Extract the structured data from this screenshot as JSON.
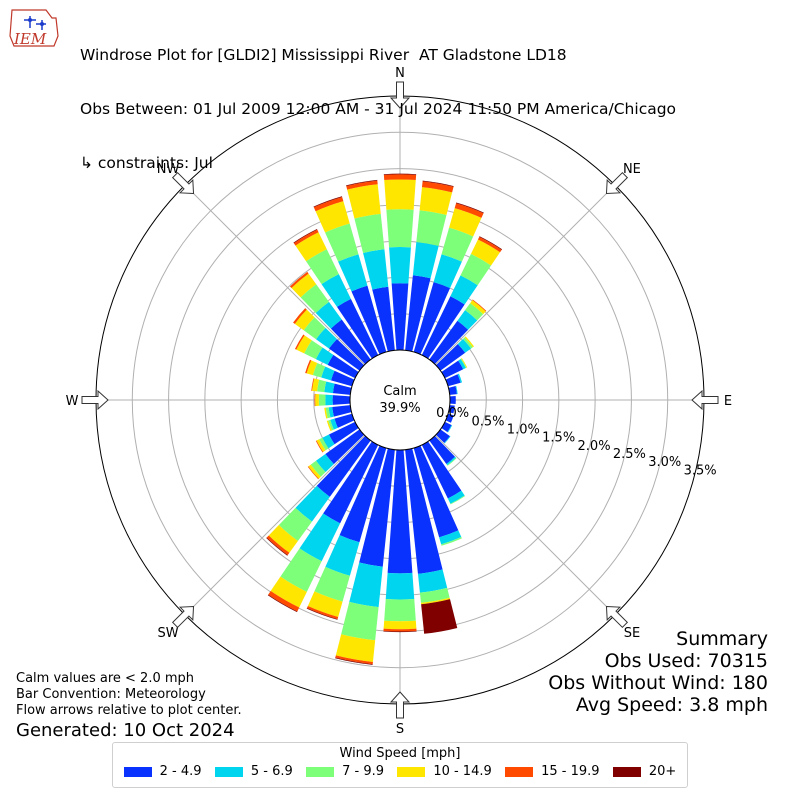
{
  "header": {
    "title": "Windrose Plot for [GLDI2] Mississippi River  AT Gladstone LD18",
    "obs_between": "Obs Between: 01 Jul 2009 12:00 AM - 31 Jul 2024 11:50 PM America/Chicago",
    "constraints": "↳ constraints: Jul"
  },
  "logo": {
    "text": "IEM"
  },
  "notes": {
    "calm_note": "Calm values are < 2.0 mph",
    "convention": "Bar Convention: Meteorology",
    "flow": "Flow arrows relative to plot center.",
    "generated": "Generated: 10 Oct 2024"
  },
  "summary": {
    "title": "Summary",
    "obs_used": "Obs Used: 70315",
    "obs_without_wind": "Obs Without Wind: 180",
    "avg_speed": "Avg Speed: 3.8 mph"
  },
  "legend": {
    "title": "Wind Speed [mph]",
    "items": [
      {
        "label": "2 - 4.9",
        "color": "#0a32ff"
      },
      {
        "label": "5 - 6.9",
        "color": "#00d5f0"
      },
      {
        "label": "7 - 9.9",
        "color": "#7dff7a"
      },
      {
        "label": "10 - 14.9",
        "color": "#ffe600"
      },
      {
        "label": "15 - 19.9",
        "color": "#ff4a00"
      },
      {
        "label": "20+",
        "color": "#800000"
      }
    ]
  },
  "chart_data": {
    "type": "windrose",
    "calm": {
      "label": "Calm",
      "value": "39.9%"
    },
    "radial_ticks": [
      "0.0%",
      "0.5%",
      "1.0%",
      "1.5%",
      "2.0%",
      "2.5%",
      "3.0%",
      "3.5%"
    ],
    "radial_max": 3.5,
    "compass": [
      "N",
      "NE",
      "E",
      "SE",
      "S",
      "SW",
      "W",
      "NW"
    ],
    "bins": [
      "2 - 4.9",
      "5 - 6.9",
      "7 - 9.9",
      "10 - 14.9",
      "15 - 19.9",
      "20+"
    ],
    "directions": [
      0,
      10,
      20,
      30,
      40,
      50,
      60,
      70,
      80,
      90,
      100,
      110,
      120,
      130,
      140,
      150,
      160,
      170,
      180,
      190,
      200,
      210,
      220,
      230,
      240,
      250,
      260,
      270,
      280,
      290,
      300,
      310,
      320,
      330,
      340,
      350
    ],
    "cumulative": [
      [
        0.92,
        1.42,
        1.94,
        2.35,
        2.42,
        2.43
      ],
      [
        1.04,
        1.5,
        1.94,
        2.26,
        2.34,
        2.35
      ],
      [
        1.0,
        1.4,
        1.78,
        2.06,
        2.13,
        2.14
      ],
      [
        0.9,
        1.22,
        1.55,
        1.77,
        1.81,
        1.82
      ],
      [
        0.66,
        0.84,
        0.96,
        1.01,
        1.02,
        1.02
      ],
      [
        0.42,
        0.52,
        0.55,
        0.57,
        0.57,
        0.57
      ],
      [
        0.28,
        0.32,
        0.33,
        0.34,
        0.34,
        0.34
      ],
      [
        0.18,
        0.2,
        0.2,
        0.2,
        0.2,
        0.2
      ],
      [
        0.1,
        0.11,
        0.11,
        0.11,
        0.11,
        0.11
      ],
      [
        0.08,
        0.08,
        0.08,
        0.08,
        0.08,
        0.08
      ],
      [
        0.07,
        0.07,
        0.07,
        0.07,
        0.07,
        0.07
      ],
      [
        0.08,
        0.08,
        0.08,
        0.08,
        0.08,
        0.08
      ],
      [
        0.1,
        0.11,
        0.11,
        0.11,
        0.11,
        0.11
      ],
      [
        0.16,
        0.17,
        0.17,
        0.17,
        0.17,
        0.17
      ],
      [
        0.4,
        0.42,
        0.43,
        0.43,
        0.43,
        0.43
      ],
      [
        0.82,
        0.9,
        0.91,
        0.91,
        0.91,
        0.91
      ],
      [
        1.28,
        1.38,
        1.4,
        1.4,
        1.4,
        1.4
      ],
      [
        1.72,
        1.98,
        2.12,
        2.14,
        2.14,
        2.55
      ],
      [
        1.7,
        2.06,
        2.36,
        2.47,
        2.5,
        2.51
      ],
      [
        1.62,
        2.18,
        2.64,
        2.94,
        2.97,
        2.98
      ],
      [
        1.35,
        1.83,
        2.2,
        2.42,
        2.45,
        2.46
      ],
      [
        1.2,
        1.78,
        2.25,
        2.49,
        2.55,
        2.56
      ],
      [
        0.96,
        1.38,
        1.71,
        1.91,
        1.95,
        1.96
      ],
      [
        0.58,
        0.74,
        0.83,
        0.87,
        0.88,
        0.88
      ],
      [
        0.4,
        0.5,
        0.55,
        0.59,
        0.6,
        0.6
      ],
      [
        0.25,
        0.31,
        0.34,
        0.36,
        0.36,
        0.36
      ],
      [
        0.25,
        0.3,
        0.34,
        0.36,
        0.36,
        0.36
      ],
      [
        0.24,
        0.34,
        0.43,
        0.48,
        0.49,
        0.49
      ],
      [
        0.24,
        0.36,
        0.46,
        0.53,
        0.54,
        0.54
      ],
      [
        0.3,
        0.44,
        0.56,
        0.65,
        0.67,
        0.67
      ],
      [
        0.42,
        0.6,
        0.78,
        0.9,
        0.92,
        0.92
      ],
      [
        0.52,
        0.74,
        0.95,
        1.1,
        1.13,
        1.13
      ],
      [
        0.68,
        0.98,
        1.28,
        1.46,
        1.49,
        1.49
      ],
      [
        0.86,
        1.24,
        1.62,
        1.88,
        1.92,
        1.93
      ],
      [
        0.95,
        1.4,
        1.84,
        2.16,
        2.22,
        2.23
      ],
      [
        0.88,
        1.4,
        1.89,
        2.3,
        2.35,
        2.36
      ]
    ]
  }
}
